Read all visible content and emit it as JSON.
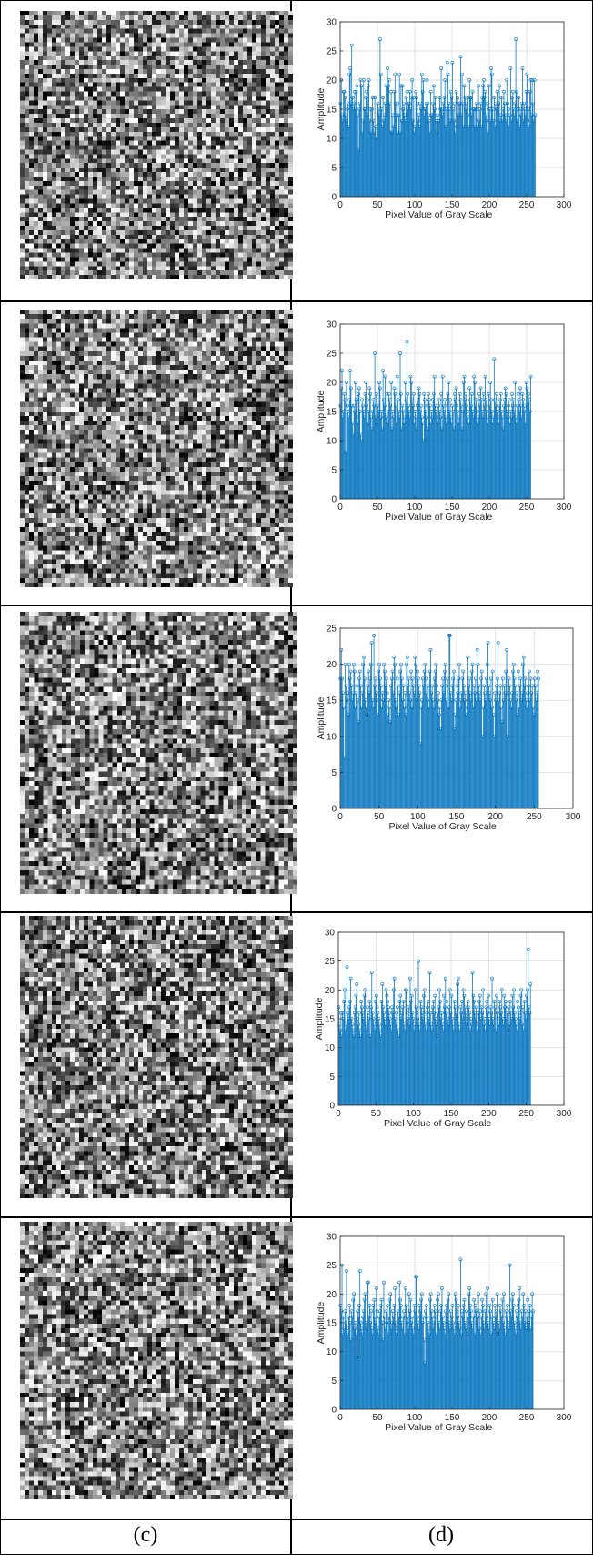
{
  "captions": {
    "left": "(c)",
    "right": "(d)"
  },
  "colors": {
    "bar": "#0072BD",
    "marker": "#0072BD",
    "grid": "#e3e3e3",
    "axis": "#262626"
  },
  "chart_data": [
    {
      "type": "bar",
      "style": "stem-with-circle-markers",
      "xlabel": "Pixel Value of Gray Scale",
      "ylabel": "Amplitude",
      "xlim": [
        0,
        300
      ],
      "ylim": [
        0,
        30
      ],
      "xticks": [
        0,
        50,
        100,
        150,
        200,
        250,
        300
      ],
      "yticks": [
        0,
        5,
        10,
        15,
        20,
        25,
        30
      ],
      "grid": true,
      "x": "0..255 (pixel values)",
      "values": [
        16,
        20,
        14,
        13,
        18,
        18,
        17,
        14,
        13,
        15,
        16,
        12,
        21,
        22,
        16,
        26,
        17,
        15,
        16,
        18,
        15,
        18,
        19,
        14,
        8,
        15,
        16,
        20,
        19,
        11,
        13,
        20,
        15,
        15,
        17,
        18,
        14,
        19,
        20,
        13,
        15,
        11,
        15,
        17,
        13,
        11,
        17,
        12,
        10,
        10,
        16,
        15,
        14,
        27,
        21,
        15,
        12,
        17,
        13,
        14,
        16,
        19,
        15,
        22,
        19,
        20,
        16,
        11,
        18,
        11,
        14,
        12,
        18,
        21,
        16,
        14,
        16,
        11,
        14,
        21,
        11,
        19,
        13,
        19,
        15,
        16,
        14,
        13,
        17,
        18,
        15,
        16,
        16,
        18,
        15,
        17,
        20,
        13,
        17,
        11,
        12,
        18,
        17,
        16,
        13,
        14,
        12,
        16,
        15,
        21,
        18,
        20,
        14,
        15,
        15,
        16,
        20,
        16,
        14,
        13,
        11,
        18,
        14,
        14,
        16,
        19,
        15,
        17,
        13,
        11,
        14,
        13,
        13,
        17,
        15,
        22,
        15,
        14,
        16,
        17,
        20,
        12,
        15,
        23,
        21,
        16,
        15,
        13,
        18,
        17,
        23,
        15,
        13,
        16,
        11,
        18,
        12,
        17,
        14,
        16,
        16,
        24,
        14,
        21,
        16,
        12,
        19,
        17,
        15,
        16,
        14,
        17,
        12,
        20,
        17,
        17,
        14,
        18,
        15,
        15,
        12,
        15,
        16,
        15,
        12,
        19,
        13,
        15,
        16,
        12,
        17,
        19,
        20,
        17,
        18,
        14,
        13,
        16,
        11,
        19,
        15,
        13,
        22,
        21,
        15,
        13,
        17,
        12,
        16,
        15,
        18,
        15,
        16,
        19,
        13,
        14,
        17,
        13,
        15,
        18,
        16,
        14,
        13,
        20,
        16,
        15,
        12,
        14,
        22,
        13,
        17,
        18,
        15,
        14,
        16,
        27,
        18,
        13,
        15,
        17,
        12,
        15,
        14,
        16,
        22,
        13,
        16,
        15,
        14,
        18,
        21,
        13,
        15,
        12,
        18,
        20,
        14,
        20,
        16,
        13,
        20,
        14
      ]
    },
    {
      "type": "bar",
      "style": "stem-with-circle-markers",
      "xlabel": "Pixel Value of Gray Scale",
      "ylabel": "Amplitude",
      "xlim": [
        0,
        300
      ],
      "ylim": [
        0,
        30
      ],
      "xticks": [
        0,
        50,
        100,
        150,
        200,
        250,
        300
      ],
      "yticks": [
        0,
        5,
        10,
        15,
        20,
        25,
        30
      ],
      "grid": true,
      "values": [
        16,
        19,
        22,
        14,
        15,
        18,
        17,
        8,
        20,
        16,
        15,
        14,
        17,
        22,
        19,
        16,
        13,
        11,
        16,
        15,
        20,
        17,
        14,
        13,
        18,
        19,
        15,
        11,
        10,
        17,
        16,
        15,
        14,
        18,
        20,
        16,
        17,
        13,
        15,
        19,
        18,
        14,
        12,
        15,
        17,
        16,
        25,
        14,
        18,
        13,
        16,
        15,
        20,
        19,
        14,
        15,
        12,
        22,
        17,
        16,
        21,
        14,
        18,
        13,
        15,
        18,
        17,
        16,
        20,
        12,
        15,
        14,
        19,
        18,
        16,
        13,
        21,
        17,
        15,
        14,
        25,
        18,
        12,
        16,
        15,
        13,
        14,
        20,
        17,
        27,
        18,
        16,
        15,
        14,
        21,
        20,
        17,
        16,
        18,
        13,
        15,
        14,
        12,
        16,
        17,
        19,
        18,
        15,
        16,
        14,
        13,
        10,
        18,
        17,
        15,
        14,
        16,
        12,
        18,
        17,
        16,
        13,
        15,
        14,
        17,
        18,
        21,
        16,
        15,
        14,
        13,
        16,
        17,
        15,
        14,
        18,
        12,
        21,
        16,
        15,
        17,
        14,
        13,
        16,
        18,
        20,
        15,
        17,
        14,
        13,
        16,
        15,
        12,
        18,
        17,
        19,
        16,
        15,
        13,
        14,
        18,
        17,
        16,
        12,
        15,
        20,
        21,
        17,
        18,
        16,
        15,
        14,
        13,
        19,
        17,
        16,
        18,
        15,
        14,
        21,
        20,
        16,
        17,
        15,
        13,
        14,
        18,
        16,
        19,
        17,
        15,
        14,
        18,
        16,
        21,
        17,
        15,
        14,
        13,
        18,
        16,
        20,
        17,
        15,
        13,
        14,
        24,
        17,
        16,
        18,
        15,
        14,
        13,
        16,
        17,
        18,
        15,
        14,
        12,
        16,
        17,
        19,
        18,
        15,
        14,
        16,
        17,
        13,
        15,
        14,
        18,
        16,
        17,
        15,
        20,
        14,
        13,
        16,
        18,
        17,
        15,
        19,
        16,
        14,
        18,
        17,
        15,
        16,
        13,
        20,
        19,
        16,
        18,
        17,
        15,
        21
      ]
    },
    {
      "type": "bar",
      "style": "stem-with-circle-markers",
      "xlabel": "Pixel Value of Gray Scale",
      "ylabel": "Amplitude",
      "xlim": [
        0,
        300
      ],
      "ylim": [
        0,
        25
      ],
      "xticks": [
        0,
        50,
        100,
        150,
        200,
        250,
        300
      ],
      "yticks": [
        0,
        5,
        10,
        15,
        20,
        25
      ],
      "grid": true,
      "values": [
        18,
        22,
        18,
        16,
        14,
        7,
        20,
        17,
        15,
        16,
        13,
        20,
        18,
        19,
        17,
        15,
        16,
        20,
        19,
        14,
        16,
        17,
        15,
        12,
        18,
        19,
        17,
        14,
        16,
        20,
        21,
        18,
        15,
        14,
        13,
        17,
        19,
        16,
        18,
        20,
        23,
        15,
        14,
        24,
        17,
        18,
        16,
        15,
        13,
        19,
        20,
        18,
        17,
        14,
        16,
        15,
        20,
        19,
        17,
        18,
        16,
        13,
        15,
        14,
        12,
        17,
        18,
        19,
        16,
        21,
        20,
        15,
        14,
        18,
        17,
        13,
        16,
        19,
        20,
        18,
        15,
        17,
        14,
        16,
        13,
        20,
        21,
        17,
        18,
        16,
        15,
        19,
        14,
        18,
        17,
        16,
        21,
        20,
        15,
        19,
        18,
        17,
        16,
        9,
        14,
        15,
        18,
        17,
        19,
        20,
        16,
        18,
        15,
        17,
        14,
        19,
        22,
        16,
        17,
        15,
        14,
        18,
        19,
        20,
        17,
        15,
        16,
        13,
        14,
        11,
        15,
        17,
        18,
        16,
        19,
        20,
        15,
        17,
        18,
        14,
        24,
        24,
        16,
        15,
        17,
        18,
        19,
        11,
        13,
        15,
        17,
        16,
        18,
        20,
        14,
        15,
        16,
        18,
        19,
        17,
        15,
        16,
        13,
        14,
        21,
        17,
        18,
        16,
        15,
        19,
        20,
        14,
        17,
        16,
        18,
        15,
        22,
        20,
        17,
        16,
        15,
        18,
        19,
        10,
        14,
        17,
        16,
        15,
        18,
        20,
        23,
        17,
        16,
        15,
        18,
        14,
        19,
        13,
        10,
        16,
        15,
        17,
        18,
        23,
        15,
        16,
        17,
        14,
        12,
        18,
        15,
        17,
        16,
        19,
        22,
        10,
        16,
        18,
        17,
        15,
        14,
        16,
        19,
        20,
        18,
        17,
        15,
        16,
        13,
        19,
        14,
        17,
        18,
        15,
        16,
        20,
        21,
        17,
        18,
        15,
        14,
        16,
        17,
        19,
        15,
        18,
        16,
        17,
        14,
        13,
        18,
        17,
        15,
        16,
        19,
        18
      ]
    },
    {
      "type": "bar",
      "style": "stem-with-circle-markers",
      "xlabel": "Pixel Value of Gray Scale",
      "ylabel": "Amplitude",
      "xlim": [
        0,
        300
      ],
      "ylim": [
        0,
        30
      ],
      "xticks": [
        0,
        50,
        100,
        150,
        200,
        250,
        300
      ],
      "yticks": [
        0,
        5,
        10,
        15,
        20,
        25,
        30
      ],
      "grid": true,
      "values": [
        17,
        14,
        13,
        16,
        12,
        16,
        15,
        18,
        20,
        13,
        14,
        24,
        16,
        15,
        17,
        18,
        22,
        15,
        14,
        13,
        12,
        16,
        17,
        19,
        21,
        15,
        14,
        16,
        13,
        12,
        18,
        17,
        16,
        15,
        19,
        20,
        14,
        13,
        17,
        16,
        15,
        18,
        12,
        17,
        23,
        16,
        15,
        14,
        13,
        18,
        19,
        17,
        16,
        15,
        14,
        13,
        12,
        18,
        21,
        17,
        16,
        15,
        14,
        20,
        19,
        18,
        17,
        16,
        15,
        14,
        13,
        17,
        16,
        20,
        22,
        15,
        14,
        16,
        17,
        13,
        12,
        18,
        19,
        15,
        16,
        17,
        18,
        14,
        13,
        20,
        20,
        16,
        15,
        17,
        14,
        22,
        18,
        19,
        16,
        15,
        13,
        14,
        20,
        17,
        16,
        15,
        25,
        14,
        13,
        18,
        17,
        16,
        15,
        19,
        20,
        14,
        13,
        16,
        17,
        18,
        15,
        23,
        16,
        14,
        13,
        17,
        18,
        16,
        19,
        15,
        14,
        12,
        16,
        17,
        20,
        18,
        15,
        16,
        14,
        13,
        19,
        17,
        22,
        16,
        18,
        15,
        14,
        17,
        20,
        16,
        19,
        15,
        14,
        13,
        18,
        17,
        16,
        15,
        21,
        22,
        14,
        13,
        17,
        16,
        18,
        15,
        20,
        19,
        17,
        16,
        14,
        15,
        18,
        17,
        16,
        13,
        15,
        14,
        23,
        19,
        18,
        16,
        15,
        17,
        14,
        13,
        16,
        18,
        19,
        15,
        17,
        16,
        20,
        14,
        15,
        13,
        17,
        18,
        16,
        19,
        15,
        14,
        17,
        16,
        22,
        15,
        14,
        18,
        17,
        13,
        19,
        16,
        15,
        14,
        18,
        17,
        16,
        20,
        15,
        14,
        19,
        17,
        18,
        15,
        16,
        13,
        17,
        14,
        18,
        16,
        15,
        19,
        17,
        20,
        16,
        15,
        14,
        13,
        18,
        17,
        16,
        15,
        19,
        20,
        14,
        17,
        13,
        18,
        16,
        15,
        19,
        20,
        27,
        17,
        16,
        21
      ]
    },
    {
      "type": "bar",
      "style": "stem-with-circle-markers",
      "xlabel": "Pixel Value of Gray Scale",
      "ylabel": "Amplitude",
      "xlim": [
        0,
        300
      ],
      "ylim": [
        0,
        30
      ],
      "xticks": [
        0,
        50,
        100,
        150,
        200,
        250,
        300
      ],
      "yticks": [
        0,
        5,
        10,
        15,
        20,
        25,
        30
      ],
      "grid": true,
      "values": [
        18,
        17,
        25,
        13,
        16,
        14,
        17,
        15,
        24,
        14,
        13,
        16,
        18,
        15,
        12,
        17,
        16,
        19,
        20,
        14,
        15,
        13,
        9,
        17,
        16,
        18,
        24,
        15,
        14,
        13,
        16,
        17,
        19,
        20,
        15,
        14,
        22,
        22,
        16,
        18,
        15,
        17,
        14,
        13,
        18,
        19,
        16,
        15,
        21,
        17,
        14,
        13,
        16,
        17,
        18,
        19,
        15,
        12,
        22,
        16,
        14,
        17,
        15,
        18,
        13,
        16,
        19,
        20,
        14,
        15,
        17,
        16,
        18,
        21,
        15,
        13,
        14,
        17,
        16,
        22,
        19,
        18,
        15,
        14,
        16,
        17,
        13,
        21,
        18,
        15,
        16,
        14,
        20,
        17,
        19,
        15,
        16,
        14,
        13,
        18,
        17,
        23,
        23,
        16,
        15,
        14,
        18,
        17,
        19,
        20,
        15,
        16,
        12,
        8,
        17,
        18,
        16,
        15,
        14,
        13,
        19,
        20,
        17,
        16,
        14,
        15,
        18,
        17,
        13,
        16,
        19,
        20,
        15,
        14,
        17,
        18,
        21,
        16,
        15,
        14,
        13,
        17,
        18,
        16,
        19,
        20,
        15,
        14,
        17,
        16,
        18,
        15,
        14,
        13,
        20,
        19,
        17,
        16,
        18,
        15,
        14,
        26,
        13,
        17,
        16,
        18,
        19,
        15,
        14,
        17,
        13,
        16,
        20,
        21,
        18,
        17,
        15,
        14,
        16,
        19,
        13,
        18,
        17,
        15,
        16,
        20,
        14,
        17,
        13,
        16,
        19,
        18,
        15,
        14,
        17,
        20,
        16,
        21,
        15,
        14,
        18,
        17,
        13,
        16,
        19,
        15,
        14,
        18,
        16,
        17,
        20,
        13,
        15,
        14,
        18,
        17,
        16,
        19,
        15,
        20,
        14,
        13,
        17,
        16,
        18,
        15,
        14,
        25,
        17,
        16,
        19,
        20,
        18,
        15,
        14,
        13,
        17,
        16,
        18,
        19,
        21,
        15,
        14,
        17,
        16,
        20,
        18,
        15,
        17,
        14,
        16,
        19,
        15,
        17,
        18,
        14,
        16,
        20,
        17
      ]
    }
  ]
}
